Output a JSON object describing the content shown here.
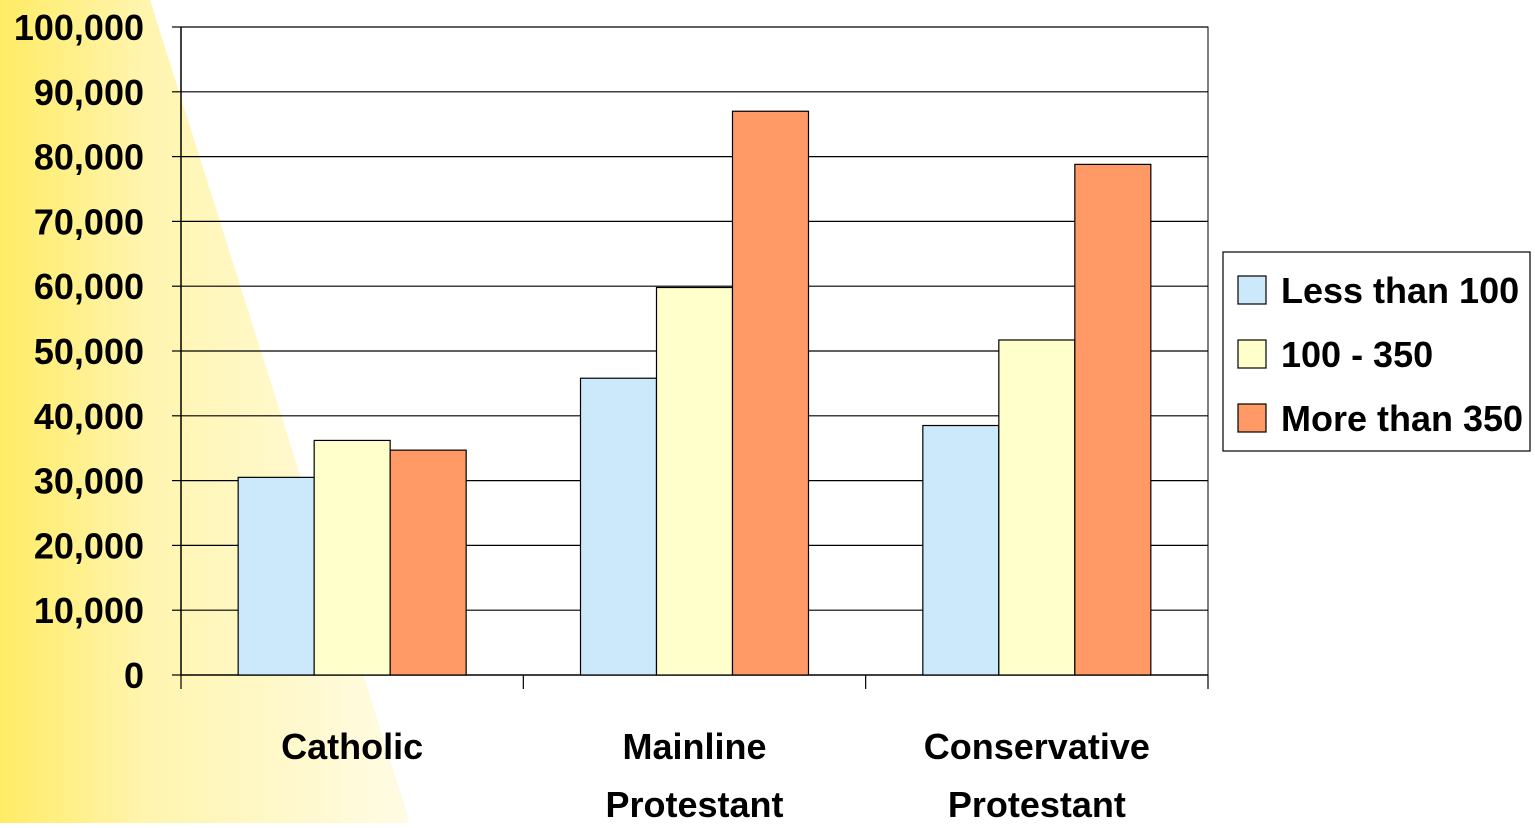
{
  "chart_data": {
    "type": "bar",
    "categories": [
      "Catholic",
      "Mainline Protestant",
      "Conservative Protestant"
    ],
    "category_lines": [
      [
        "Catholic"
      ],
      [
        "Mainline",
        "Protestant"
      ],
      [
        "Conservative",
        "Protestant"
      ]
    ],
    "series": [
      {
        "name": "Less than 100",
        "color": "#cce9fb",
        "values": [
          30500,
          45800,
          38500
        ]
      },
      {
        "name": "100 - 350",
        "color": "#ffffcc",
        "values": [
          36200,
          59800,
          51700
        ]
      },
      {
        "name": "More than 350",
        "color": "#ff9966",
        "values": [
          34700,
          87000,
          78800
        ]
      }
    ],
    "ylim": [
      0,
      100000
    ],
    "yticks": [
      0,
      10000,
      20000,
      30000,
      40000,
      50000,
      60000,
      70000,
      80000,
      90000,
      100000
    ],
    "ytick_labels": [
      "0",
      "10,000",
      "20,000",
      "30,000",
      "40,000",
      "50,000",
      "60,000",
      "70,000",
      "80,000",
      "90,000",
      "100,000"
    ],
    "grid": true,
    "legend_position": "right",
    "title": "",
    "xlabel": "",
    "ylabel": ""
  }
}
